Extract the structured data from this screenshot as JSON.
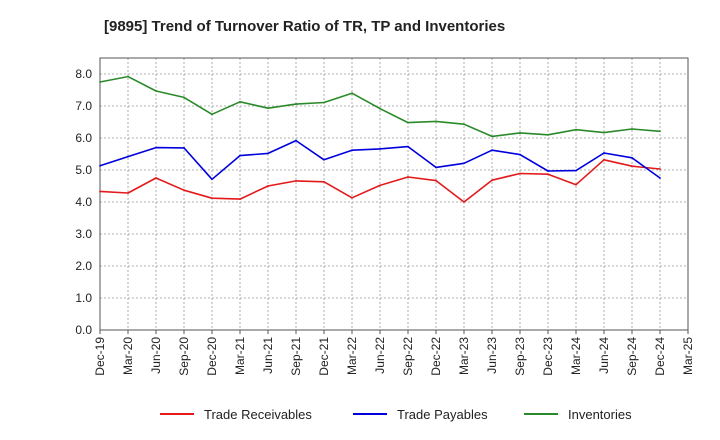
{
  "chart_data": {
    "type": "line",
    "title": "[9895]  Trend of Turnover Ratio of TR, TP and Inventories",
    "xlabel": "",
    "ylabel": "",
    "ylim": [
      0,
      8.5
    ],
    "yticks": [
      "0.0",
      "1.0",
      "2.0",
      "3.0",
      "4.0",
      "5.0",
      "6.0",
      "7.0",
      "8.0"
    ],
    "x_tick_labels": [
      "Dec-19",
      "Mar-20",
      "Jun-20",
      "Sep-20",
      "Dec-20",
      "Mar-21",
      "Jun-21",
      "Sep-21",
      "Dec-21",
      "Mar-22",
      "Jun-22",
      "Sep-22",
      "Dec-22",
      "Mar-23",
      "Jun-23",
      "Sep-23",
      "Dec-23",
      "Mar-24",
      "Jun-24",
      "Sep-24",
      "Dec-24",
      "Mar-25"
    ],
    "x": [
      "Dec-19",
      "Mar-20",
      "Jun-20",
      "Sep-20",
      "Dec-20",
      "Mar-21",
      "Jun-21",
      "Sep-21",
      "Dec-21",
      "Mar-22",
      "Jun-22",
      "Sep-22",
      "Dec-22",
      "Mar-23",
      "Jun-23",
      "Sep-23",
      "Dec-23",
      "Mar-24",
      "Jun-24",
      "Sep-24",
      "Dec-24"
    ],
    "grid": true,
    "legend_position": "bottom",
    "series": [
      {
        "name": "Trade Receivables",
        "color": "#e31a1c",
        "values": [
          4.33,
          4.28,
          4.75,
          4.37,
          4.12,
          4.09,
          4.5,
          4.66,
          4.63,
          4.13,
          4.52,
          4.78,
          4.67,
          4.0,
          4.68,
          4.89,
          4.87,
          4.54,
          5.32,
          5.12,
          5.03
        ]
      },
      {
        "name": "Trade Payables",
        "color": "#0000dd",
        "values": [
          5.13,
          5.42,
          5.7,
          5.69,
          4.71,
          5.45,
          5.52,
          5.92,
          5.32,
          5.62,
          5.66,
          5.73,
          5.08,
          5.21,
          5.62,
          5.48,
          4.97,
          4.98,
          5.53,
          5.38,
          4.75
        ]
      },
      {
        "name": "Inventories",
        "color": "#2a8a2a",
        "values": [
          7.75,
          7.92,
          7.47,
          7.27,
          6.74,
          7.13,
          6.93,
          7.06,
          7.11,
          7.4,
          6.92,
          6.48,
          6.52,
          6.43,
          6.05,
          6.16,
          6.1,
          6.26,
          6.17,
          6.28,
          6.21
        ]
      }
    ]
  }
}
